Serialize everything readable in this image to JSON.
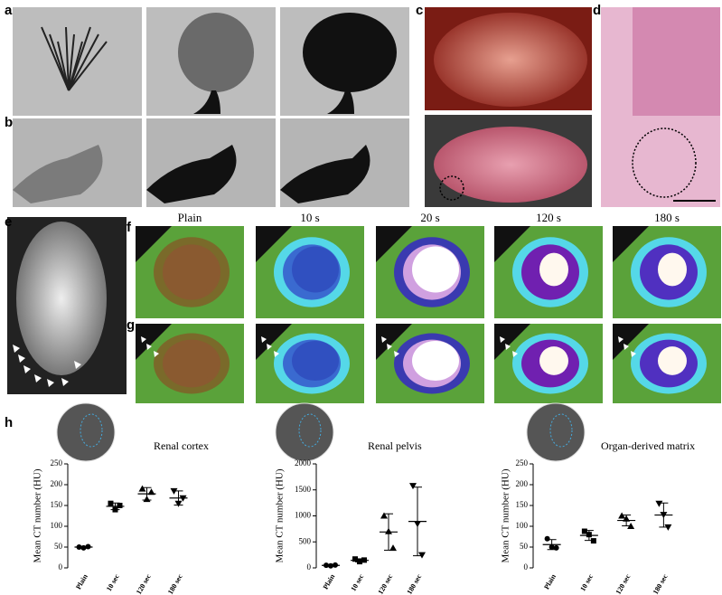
{
  "panels": [
    "a",
    "b",
    "c",
    "d",
    "e",
    "f",
    "g",
    "h"
  ],
  "column_labels": [
    "Plain",
    "10 s",
    "20 s",
    "120 s",
    "180 s"
  ],
  "chart_data": [
    {
      "type": "dotplot",
      "title": "Renal cortex",
      "ylabel": "Mean CT number  (HU)",
      "categories": [
        "Plain",
        "10 sec",
        "120 sec",
        "180 sec"
      ],
      "points": [
        [
          50,
          48,
          51
        ],
        [
          155,
          140,
          150
        ],
        [
          190,
          165,
          182
        ],
        [
          185,
          155,
          168
        ]
      ],
      "values": [
        50,
        148,
        178,
        168
      ],
      "errors": [
        2,
        8,
        15,
        17
      ],
      "ylim": [
        0,
        250
      ],
      "yticks": [
        0,
        50,
        100,
        150,
        200,
        250
      ],
      "color": "#000000"
    },
    {
      "type": "dotplot",
      "title": "Renal pelvis",
      "ylabel": "Mean CT number  (HU)",
      "categories": [
        "Plain",
        "10 sec",
        "120 sec",
        "180 sec"
      ],
      "points": [
        [
          50,
          40,
          55
        ],
        [
          170,
          120,
          150
        ],
        [
          1000,
          700,
          380
        ],
        [
          1580,
          850,
          250
        ]
      ],
      "values": [
        48,
        145,
        690,
        893
      ],
      "errors": [
        8,
        30,
        350,
        660
      ],
      "ylim": [
        0,
        2000
      ],
      "yticks": [
        0,
        500,
        1000,
        1500,
        2000
      ],
      "color": "#000000"
    },
    {
      "type": "dotplot",
      "title": "Organ-derived matrix",
      "ylabel": "Mean CT number  (HU)",
      "categories": [
        "Plain",
        "10 sec",
        "120 sec",
        "180 sec"
      ],
      "points": [
        [
          70,
          50,
          48
        ],
        [
          88,
          80,
          65
        ],
        [
          125,
          118,
          100
        ],
        [
          155,
          128,
          98
        ]
      ],
      "values": [
        56,
        78,
        114,
        127
      ],
      "errors": [
        12,
        12,
        13,
        29
      ],
      "ylim": [
        0,
        250
      ],
      "yticks": [
        0,
        50,
        100,
        150,
        200,
        250
      ],
      "color": "#000000"
    }
  ]
}
